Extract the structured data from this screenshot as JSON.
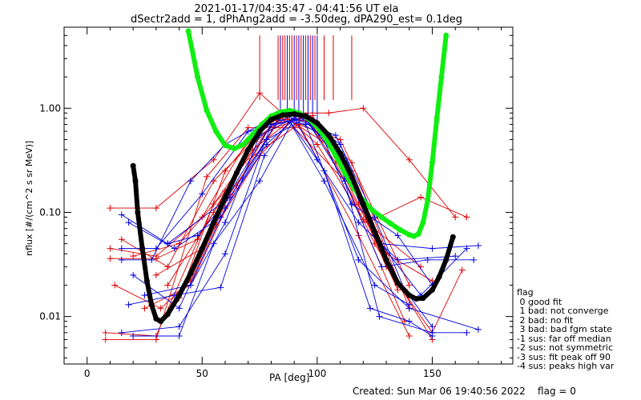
{
  "title_line1": "2021-01-17/04:35:47 - 04:41:56 UT ela",
  "title_line2": "dSectr2add = 1, dPhAng2add = -3.50deg, dPA290_est=   0.1deg",
  "footer": "Created: Sun Mar 06 19:40:56 2022    flag = 0",
  "legend": {
    "title": "flag",
    "items": [
      " 0 good fit",
      " 1 bad: not converge",
      " 2 bad: no fit",
      " 3 bad: bad fgm state",
      "-1 sus: far off median",
      "-2 sus: not symmetric",
      "-3 sus: fit peak off 90",
      "-4 sus: peaks high var"
    ]
  },
  "colors": {
    "red": "#e00000",
    "blue": "#0000e0",
    "green": "#11ee11",
    "black": "#000000"
  },
  "chart_data": {
    "type": "line",
    "xlabel": "PA [deg]",
    "ylabel": "nflux [#/(cm^2 s sr MeV)]",
    "xlim": [
      -10,
      185
    ],
    "ylim": [
      0.0035,
      6.0
    ],
    "yscale": "log",
    "xticks": [
      0,
      50,
      100,
      150
    ],
    "yticks": [
      0.01,
      0.1,
      1.0
    ],
    "ytick_labels": [
      "0.01",
      "0.10",
      "1.00"
    ],
    "green_fit": {
      "x": [
        44,
        48,
        52,
        56,
        60,
        64,
        68,
        72,
        76,
        80,
        84,
        88,
        92,
        96,
        100,
        104,
        108,
        112,
        116,
        120,
        124,
        128,
        132,
        136,
        140,
        142,
        144,
        146,
        148,
        150,
        152,
        154,
        156
      ],
      "y": [
        5.5,
        2.0,
        0.95,
        0.6,
        0.44,
        0.41,
        0.45,
        0.56,
        0.7,
        0.84,
        0.92,
        0.95,
        0.9,
        0.8,
        0.66,
        0.5,
        0.35,
        0.24,
        0.17,
        0.13,
        0.105,
        0.09,
        0.078,
        0.068,
        0.061,
        0.059,
        0.062,
        0.08,
        0.13,
        0.3,
        0.8,
        2.0,
        5.0
      ]
    },
    "black_fit": {
      "x": [
        20,
        21,
        22,
        24,
        26,
        28,
        30,
        32,
        35,
        40,
        45,
        50,
        55,
        60,
        65,
        70,
        75,
        80,
        85,
        90,
        95,
        100,
        105,
        110,
        115,
        120,
        125,
        130,
        135,
        140,
        143,
        146,
        150,
        153,
        156,
        159
      ],
      "y": [
        0.28,
        0.2,
        0.1,
        0.045,
        0.022,
        0.013,
        0.0095,
        0.009,
        0.0105,
        0.016,
        0.026,
        0.045,
        0.08,
        0.14,
        0.24,
        0.4,
        0.6,
        0.78,
        0.86,
        0.88,
        0.84,
        0.72,
        0.55,
        0.37,
        0.22,
        0.12,
        0.065,
        0.035,
        0.021,
        0.016,
        0.0148,
        0.015,
        0.018,
        0.024,
        0.035,
        0.058
      ]
    },
    "series": [
      {
        "color": "red",
        "x": [
          10,
          30,
          55,
          75,
          100,
          120,
          145
        ],
        "y": [
          0.11,
          0.11,
          0.32,
          1.4,
          0.45,
          0.085,
          0.03
        ]
      },
      {
        "color": "red",
        "x": [
          10,
          30,
          50,
          70,
          95,
          115,
          140
        ],
        "y": [
          0.045,
          0.038,
          0.09,
          0.5,
          0.85,
          0.3,
          0.012
        ]
      },
      {
        "color": "red",
        "x": [
          10,
          30,
          48,
          68,
          92,
          118,
          140
        ],
        "y": [
          0.036,
          0.036,
          0.055,
          0.3,
          0.7,
          0.06,
          0.0065
        ]
      },
      {
        "color": "red",
        "x": [
          8,
          30,
          55,
          72,
          88,
          110,
          140
        ],
        "y": [
          0.007,
          0.0065,
          0.12,
          0.4,
          0.75,
          0.5,
          0.02
        ]
      },
      {
        "color": "red",
        "x": [
          8,
          30,
          52,
          70,
          90,
          112,
          138
        ],
        "y": [
          0.006,
          0.006,
          0.22,
          0.65,
          0.65,
          0.2,
          0.009
        ]
      },
      {
        "color": "red",
        "x": [
          12,
          32,
          45,
          62,
          85,
          108,
          135
        ],
        "y": [
          0.02,
          0.012,
          0.022,
          0.15,
          0.85,
          0.4,
          0.02
        ]
      },
      {
        "color": "red",
        "x": [
          15,
          35,
          55,
          75,
          90,
          105,
          120,
          140,
          160
        ],
        "y": [
          0.055,
          0.03,
          0.2,
          0.55,
          0.9,
          0.9,
          1.0,
          0.32,
          0.09
        ]
      },
      {
        "color": "red",
        "x": [
          35,
          55,
          70,
          85,
          100,
          115,
          130,
          150
        ],
        "y": [
          0.02,
          0.1,
          0.4,
          0.85,
          0.7,
          0.25,
          0.04,
          0.022
        ]
      },
      {
        "color": "red",
        "x": [
          40,
          60,
          78,
          95,
          108,
          125,
          150
        ],
        "y": [
          0.015,
          0.25,
          0.75,
          0.8,
          0.3,
          0.05,
          0.006
        ]
      },
      {
        "color": "red",
        "x": [
          25,
          45,
          65,
          80,
          98,
          118,
          135
        ],
        "y": [
          0.012,
          0.02,
          0.18,
          0.7,
          0.85,
          0.12,
          0.018
        ]
      },
      {
        "color": "red",
        "x": [
          20,
          40,
          60,
          82,
          97,
          122,
          145,
          165
        ],
        "y": [
          0.038,
          0.05,
          0.16,
          0.8,
          0.75,
          0.08,
          0.14,
          0.09
        ]
      },
      {
        "color": "red",
        "x": [
          30,
          50,
          75,
          92,
          110,
          130,
          150,
          163
        ],
        "y": [
          0.025,
          0.045,
          0.35,
          0.9,
          0.35,
          0.03,
          0.007,
          0.028
        ]
      },
      {
        "color": "blue",
        "x": [
          15,
          35,
          60,
          80,
          92,
          110,
          128,
          150,
          170
        ],
        "y": [
          0.095,
          0.05,
          0.13,
          0.7,
          0.9,
          0.45,
          0.05,
          0.045,
          0.048
        ]
      },
      {
        "color": "blue",
        "x": [
          18,
          38,
          58,
          78,
          95,
          112,
          128,
          148,
          168
        ],
        "y": [
          0.08,
          0.045,
          0.09,
          0.5,
          0.8,
          0.2,
          0.03,
          0.035,
          0.035
        ]
      },
      {
        "color": "blue",
        "x": [
          15,
          30,
          50,
          70,
          88,
          100,
          118,
          135,
          160
        ],
        "y": [
          0.045,
          0.045,
          0.15,
          0.6,
          0.75,
          0.32,
          0.08,
          0.035,
          0.038
        ]
      },
      {
        "color": "blue",
        "x": [
          15,
          28,
          45,
          60,
          80,
          95,
          118,
          140,
          170
        ],
        "y": [
          0.035,
          0.035,
          0.2,
          0.45,
          0.8,
          0.7,
          0.035,
          0.012,
          0.0075
        ]
      },
      {
        "color": "blue",
        "x": [
          15,
          40,
          60,
          80,
          95,
          110,
          127,
          150,
          165
        ],
        "y": [
          0.007,
          0.008,
          0.04,
          0.7,
          0.8,
          0.3,
          0.01,
          0.007,
          0.007
        ]
      },
      {
        "color": "blue",
        "x": [
          20,
          40,
          55,
          75,
          90,
          103,
          123,
          140,
          150
        ],
        "y": [
          0.0065,
          0.0065,
          0.05,
          0.2,
          0.8,
          0.25,
          0.012,
          0.009,
          0.0065
        ]
      },
      {
        "color": "blue",
        "x": [
          18,
          38,
          58,
          77,
          88,
          103,
          125,
          140
        ],
        "y": [
          0.013,
          0.016,
          0.019,
          0.35,
          0.75,
          0.2,
          0.02,
          0.013
        ]
      },
      {
        "color": "blue",
        "x": [
          25,
          45,
          60,
          75,
          92,
          108,
          125,
          145,
          165
        ],
        "y": [
          0.016,
          0.02,
          0.08,
          0.55,
          0.85,
          0.4,
          0.06,
          0.016,
          0.045
        ]
      },
      {
        "color": "blue",
        "x": [
          35,
          48,
          62,
          85,
          102,
          115,
          135,
          150
        ],
        "y": [
          0.05,
          0.06,
          0.14,
          0.9,
          0.55,
          0.12,
          0.06,
          0.02
        ]
      },
      {
        "color": "blue",
        "x": [
          20,
          40,
          60,
          78,
          90,
          108,
          125,
          138,
          150
        ],
        "y": [
          0.025,
          0.012,
          0.11,
          0.45,
          0.8,
          0.55,
          0.09,
          0.018,
          0.008
        ]
      }
    ],
    "spikes": {
      "color_red": "red",
      "color_blue": "blue",
      "x_red": [
        75,
        83,
        85,
        86,
        88,
        89,
        91,
        93,
        95,
        97,
        99,
        103,
        107,
        115
      ],
      "x_blue": [
        84,
        87,
        90,
        92,
        94,
        96,
        98,
        100
      ],
      "y_top": 5.0,
      "y_bottom_red": 1.2,
      "y_bottom_blue": 0.75
    }
  }
}
